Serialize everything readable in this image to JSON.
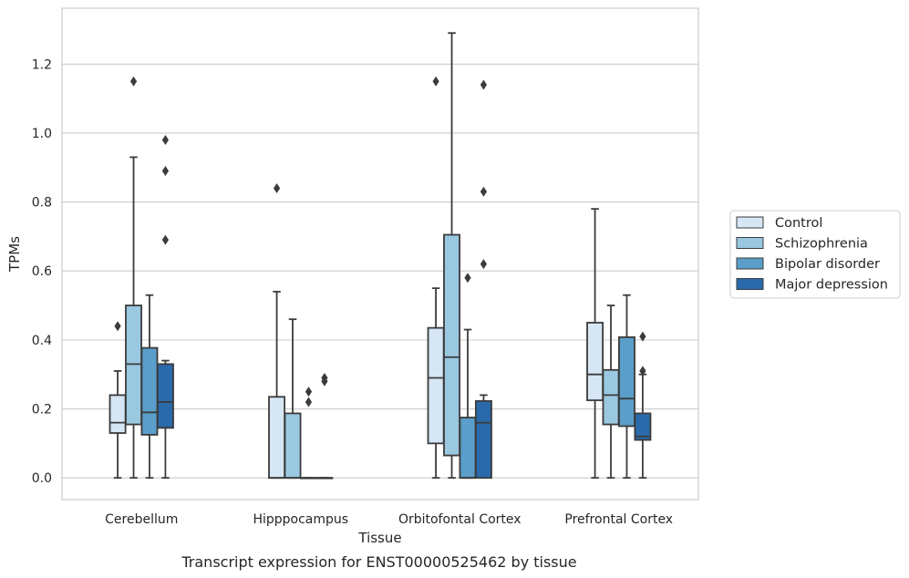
{
  "chart_data": {
    "type": "box",
    "title": "",
    "caption": "Transcript expression for ENST00000525462 by tissue",
    "xlabel": "Tissue",
    "ylabel": "TPMs",
    "ylim": [
      -0.063,
      1.362
    ],
    "yticks": [
      0.0,
      0.2,
      0.4,
      0.6,
      0.8,
      1.0,
      1.2
    ],
    "ytick_labels": [
      "0.0",
      "0.2",
      "0.4",
      "0.6",
      "0.8",
      "1.0",
      "1.2"
    ],
    "grid": "horizontal",
    "legend_position": "right",
    "categories": [
      "Cerebellum",
      "Hipppocampus",
      "Orbitofontal Cortex",
      "Prefrontal Cortex"
    ],
    "series": [
      {
        "name": "Control",
        "color": "#d6e6f4",
        "boxes": [
          {
            "whislo": 0.0,
            "q1": 0.13,
            "med": 0.16,
            "q3": 0.24,
            "whishi": 0.31,
            "fliers": [
              0.44
            ]
          },
          {
            "whislo": 0.0,
            "q1": 0.0,
            "med": 0.0,
            "q3": 0.235,
            "whishi": 0.54,
            "fliers": [
              0.84
            ]
          },
          {
            "whislo": 0.0,
            "q1": 0.1,
            "med": 0.29,
            "q3": 0.435,
            "whishi": 0.55,
            "fliers": [
              1.15
            ]
          },
          {
            "whislo": 0.0,
            "q1": 0.225,
            "med": 0.3,
            "q3": 0.45,
            "whishi": 0.78,
            "fliers": []
          }
        ]
      },
      {
        "name": "Schizophrenia",
        "color": "#9ac8e0",
        "boxes": [
          {
            "whislo": 0.0,
            "q1": 0.155,
            "med": 0.33,
            "q3": 0.5,
            "whishi": 0.93,
            "fliers": [
              1.15
            ]
          },
          {
            "whislo": 0.0,
            "q1": 0.0,
            "med": 0.0,
            "q3": 0.187,
            "whishi": 0.46,
            "fliers": []
          },
          {
            "whislo": 0.0,
            "q1": 0.065,
            "med": 0.35,
            "q3": 0.705,
            "whishi": 1.29,
            "fliers": []
          },
          {
            "whislo": 0.0,
            "q1": 0.155,
            "med": 0.24,
            "q3": 0.313,
            "whishi": 0.5,
            "fliers": []
          }
        ]
      },
      {
        "name": "Bipolar disorder",
        "color": "#5a9ec9",
        "boxes": [
          {
            "whislo": 0.0,
            "q1": 0.125,
            "med": 0.19,
            "q3": 0.377,
            "whishi": 0.53,
            "fliers": []
          },
          {
            "whislo": 0.0,
            "q1": 0.0,
            "med": 0.0,
            "q3": 0.0,
            "whishi": 0.0,
            "fliers": [
              0.22,
              0.25
            ]
          },
          {
            "whislo": 0.0,
            "q1": 0.0,
            "med": 0.0,
            "q3": 0.175,
            "whishi": 0.43,
            "fliers": [
              0.58
            ]
          },
          {
            "whislo": 0.0,
            "q1": 0.15,
            "med": 0.23,
            "q3": 0.408,
            "whishi": 0.53,
            "fliers": []
          }
        ]
      },
      {
        "name": "Major depression",
        "color": "#2a6aab",
        "boxes": [
          {
            "whislo": 0.0,
            "q1": 0.145,
            "med": 0.22,
            "q3": 0.33,
            "whishi": 0.34,
            "fliers": [
              0.69,
              0.89,
              0.98
            ]
          },
          {
            "whislo": 0.0,
            "q1": 0.0,
            "med": 0.0,
            "q3": 0.0,
            "whishi": 0.0,
            "fliers": [
              0.28,
              0.29
            ]
          },
          {
            "whislo": 0.0,
            "q1": 0.0,
            "med": 0.16,
            "q3": 0.223,
            "whishi": 0.24,
            "fliers": [
              0.62,
              0.83,
              1.14
            ]
          },
          {
            "whislo": 0.0,
            "q1": 0.11,
            "med": 0.12,
            "q3": 0.187,
            "whishi": 0.3,
            "fliers": [
              0.31,
              0.41
            ]
          }
        ]
      }
    ]
  }
}
